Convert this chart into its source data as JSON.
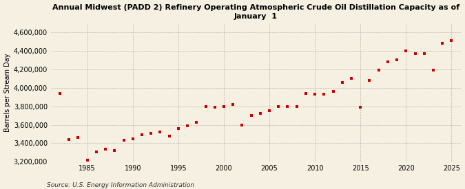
{
  "title": "Annual Midwest (PADD 2) Refinery Operating Atmospheric Crude Oil Distillation Capacity as of\nJanuary  1",
  "ylabel": "Barrels per Stream Day",
  "source": "Source: U.S. Energy Information Administration",
  "background_color": "#f5f0e1",
  "marker_color": "#cc0000",
  "years": [
    1982,
    1983,
    1984,
    1985,
    1986,
    1987,
    1988,
    1989,
    1990,
    1991,
    1992,
    1993,
    1994,
    1995,
    1996,
    1997,
    1998,
    1999,
    2000,
    2001,
    2002,
    2003,
    2004,
    2005,
    2006,
    2007,
    2008,
    2009,
    2010,
    2011,
    2012,
    2013,
    2014,
    2015,
    2016,
    2017,
    2018,
    2019,
    2020,
    2021,
    2022,
    2023,
    2024,
    2025
  ],
  "values": [
    3940000,
    3440000,
    3460000,
    3220000,
    3310000,
    3340000,
    3320000,
    3430000,
    3450000,
    3490000,
    3510000,
    3520000,
    3480000,
    3560000,
    3590000,
    3630000,
    3800000,
    3790000,
    3800000,
    3820000,
    3600000,
    3700000,
    3720000,
    3750000,
    3800000,
    3800000,
    3800000,
    3940000,
    3930000,
    3930000,
    3960000,
    4060000,
    4100000,
    3790000,
    4080000,
    4190000,
    4280000,
    4300000,
    4400000,
    4370000,
    4370000,
    4190000,
    4480000,
    4510000
  ],
  "ylim": [
    3200000,
    4700000
  ],
  "yticks": [
    3200000,
    3400000,
    3600000,
    3800000,
    4000000,
    4200000,
    4400000,
    4600000
  ],
  "xticks": [
    1985,
    1990,
    1995,
    2000,
    2005,
    2010,
    2015,
    2020,
    2025
  ],
  "xlim": [
    1981,
    2026
  ],
  "title_fontsize": 8,
  "tick_fontsize": 7,
  "ylabel_fontsize": 7,
  "source_fontsize": 6.5,
  "marker_size": 9
}
